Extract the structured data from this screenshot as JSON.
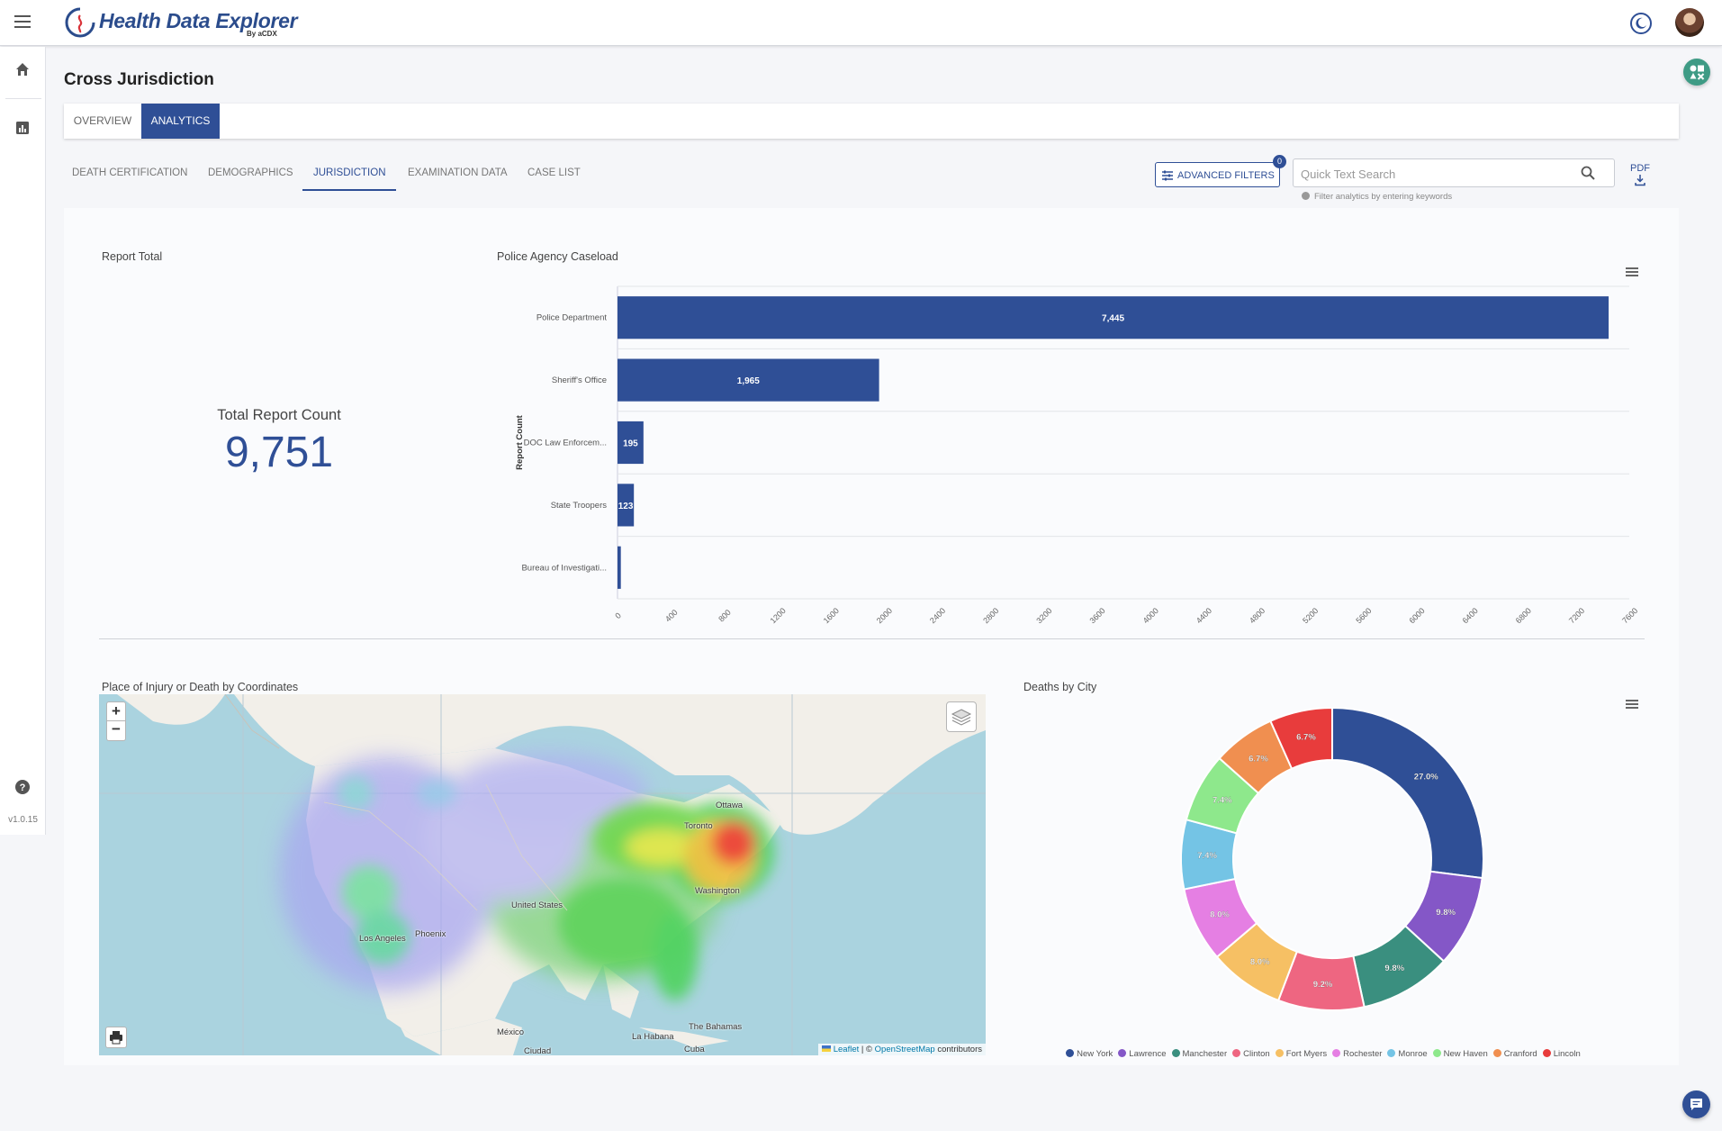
{
  "app": {
    "title": "Health Data Explorer",
    "byline": "By aCDX",
    "version": "v1.0.15"
  },
  "page": {
    "title": "Cross Jurisdiction"
  },
  "main_tabs": [
    {
      "label": "OVERVIEW",
      "active": false
    },
    {
      "label": "ANALYTICS",
      "active": true
    }
  ],
  "sub_tabs": [
    {
      "label": "DEATH CERTIFICATION",
      "active": false
    },
    {
      "label": "DEMOGRAPHICS",
      "active": false
    },
    {
      "label": "JURISDICTION",
      "active": true
    },
    {
      "label": "EXAMINATION DATA",
      "active": false
    },
    {
      "label": "CASE LIST",
      "active": false
    }
  ],
  "toolbar": {
    "advanced_filters_label": "ADVANCED FILTERS",
    "filter_count": "0",
    "search_placeholder": "Quick Text Search",
    "search_value": "",
    "search_hint": "Filter analytics by entering keywords",
    "pdf_label": "PDF"
  },
  "report_total": {
    "title": "Report Total",
    "label": "Total Report Count",
    "value": "9,751"
  },
  "caseload_chart": {
    "title": "Police Agency Caseload"
  },
  "map": {
    "title": "Place of Injury or Death by Coordinates",
    "zoom_in_label": "+",
    "zoom_out_label": "−",
    "attribution_leaflet": "Leaflet",
    "attribution_sep": " | © ",
    "attribution_osm": "OpenStreetMap",
    "attribution_tail": " contributors",
    "place_labels": [
      "Ottawa",
      "Toronto",
      "United States",
      "Washington",
      "Los Angeles",
      "Phoenix",
      "México",
      "La Habana",
      "The Bahamas",
      "Ciudad",
      "Cuba"
    ]
  },
  "city_chart": {
    "title": "Deaths by City"
  },
  "colors": {
    "primary": "#2f4f96",
    "accent_green": "#3e9b85"
  },
  "chart_data": [
    {
      "type": "bar",
      "orientation": "horizontal",
      "title": "Police Agency Caseload",
      "ylabel": "Report Count",
      "categories": [
        "Police Department",
        "Sheriff's Office",
        "DOC Law Enforcem...",
        "State Troopers",
        "Bureau of Investigati..."
      ],
      "values": [
        7445,
        1965,
        195,
        123,
        25
      ],
      "data_labels": [
        "7,445",
        "1,965",
        "195",
        "123",
        ""
      ],
      "xlim": [
        0,
        7600
      ],
      "xticks": [
        "0",
        "400",
        "800",
        "1200",
        "1600",
        "2000",
        "2400",
        "2800",
        "3200",
        "3600",
        "4000",
        "4400",
        "4800",
        "5200",
        "5600",
        "6000",
        "6400",
        "6800",
        "7200",
        "7600"
      ],
      "bar_color": "#2f4f96",
      "grid": true
    },
    {
      "type": "pie",
      "variant": "donut",
      "title": "Deaths by City",
      "categories": [
        "New York",
        "Lawrence",
        "Manchester",
        "Clinton",
        "Fort Myers",
        "Rochester",
        "Monroe",
        "New Haven",
        "Cranford",
        "Lincoln"
      ],
      "values": [
        27.0,
        9.8,
        9.8,
        9.2,
        8.0,
        8.0,
        7.4,
        7.4,
        6.7,
        6.7
      ],
      "data_labels": [
        "27.0%",
        "9.8%",
        "9.8%",
        "9.2%",
        "8.0%",
        "8.0%",
        "7.4%",
        "7.4%",
        "6.7%",
        "6.7%"
      ],
      "colors": [
        "#2f4f96",
        "#8457c7",
        "#3a8f7f",
        "#ee6681",
        "#f6c064",
        "#e57fe3",
        "#74c4e5",
        "#8ee88c",
        "#f08f50",
        "#e83c3c"
      ],
      "legend": "bottom"
    }
  ]
}
